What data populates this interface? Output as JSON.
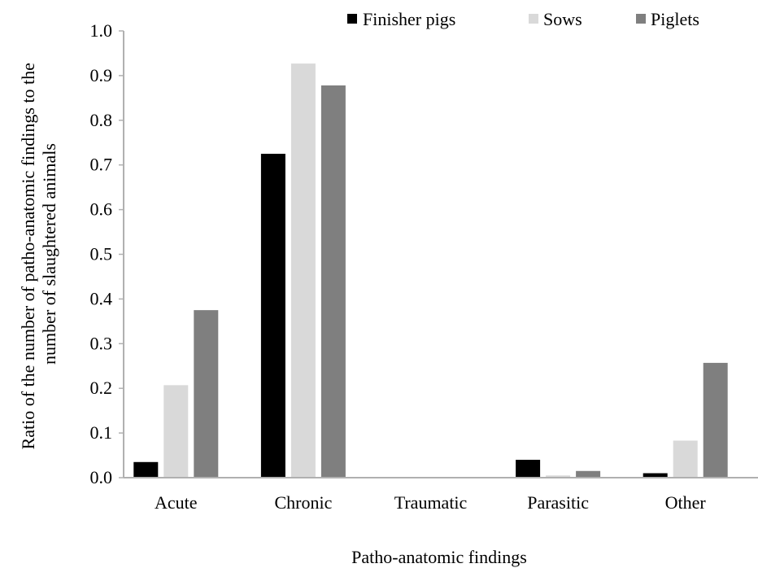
{
  "chart_data": {
    "type": "bar",
    "title": "",
    "xlabel": "Patho-anatomic findings",
    "ylabel_lines": [
      "Ratio of the number of patho-anatomic findings to the",
      "number of slaughtered animals"
    ],
    "categories": [
      "Acute",
      "Chronic",
      "Traumatic",
      "Parasitic",
      "Other"
    ],
    "series": [
      {
        "name": "Finisher pigs",
        "color": "#000000",
        "values": [
          0.035,
          0.725,
          0.0,
          0.04,
          0.01
        ]
      },
      {
        "name": "Sows",
        "color": "#d9d9d9",
        "values": [
          0.207,
          0.927,
          0.0,
          0.005,
          0.083
        ]
      },
      {
        "name": "Piglets",
        "color": "#7f7f7f",
        "values": [
          0.375,
          0.878,
          0.0,
          0.015,
          0.257
        ]
      }
    ],
    "ylim": [
      0,
      1.0
    ],
    "yticks": [
      "0.0",
      "0.1",
      "0.2",
      "0.3",
      "0.4",
      "0.5",
      "0.6",
      "0.7",
      "0.8",
      "0.9",
      "1.0"
    ],
    "grid": false,
    "legend_position": "top"
  }
}
